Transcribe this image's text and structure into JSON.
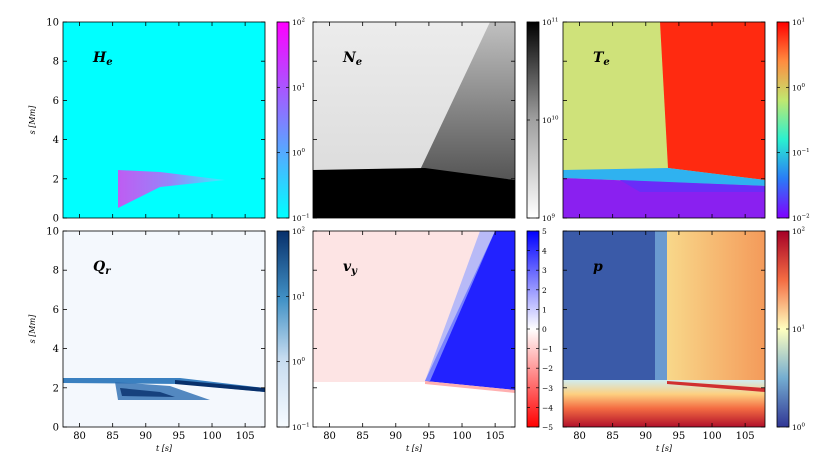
{
  "chart_data": {
    "type": "heatmap",
    "x": {
      "label": "t [s]",
      "range": [
        77.5,
        108
      ],
      "ticks": [
        "80",
        "85",
        "90",
        "95",
        "100",
        "105"
      ]
    },
    "y": {
      "label": "s [Mm]",
      "range": [
        0,
        10
      ],
      "ticks": [
        "0",
        "2",
        "4",
        "6",
        "8",
        "10"
      ]
    },
    "panels": [
      {
        "id": "He",
        "label": "H",
        "sub": "e",
        "colormap": "cool",
        "colorbar": {
          "scale": "log",
          "range": [
            0.1,
            100
          ],
          "ticks": [
            "10",
            "10",
            "10",
            "10"
          ],
          "exps": [
            "2",
            "1",
            "0",
            "−1"
          ]
        }
      },
      {
        "id": "Ne",
        "label": "N",
        "sub": "e",
        "colormap": "greys",
        "colorbar": {
          "scale": "log",
          "range": [
            1000000000.0,
            100000000000.0
          ],
          "ticks": [
            "10",
            "10",
            "10"
          ],
          "exps": [
            "11",
            "10",
            "9"
          ]
        }
      },
      {
        "id": "Te",
        "label": "T",
        "sub": "e",
        "colormap": "rainbow",
        "colorbar": {
          "scale": "log",
          "range": [
            0.01,
            20
          ],
          "ticks": [
            "10",
            "10",
            "10",
            "10"
          ],
          "exps": [
            "1",
            "0",
            "−1",
            "−2"
          ]
        }
      },
      {
        "id": "Qr",
        "label": "Q",
        "sub": "r",
        "colormap": "blues",
        "colorbar": {
          "scale": "log",
          "range": [
            0.1,
            100
          ],
          "ticks": [
            "10",
            "10",
            "10",
            "10"
          ],
          "exps": [
            "2",
            "1",
            "0",
            "−1"
          ]
        }
      },
      {
        "id": "vy",
        "label": "v",
        "sub": "y",
        "colormap": "bwr",
        "colorbar": {
          "scale": "linear",
          "range": [
            -5,
            5
          ],
          "ticks": [
            "5",
            "4",
            "3",
            "2",
            "1",
            "0",
            "−1",
            "−2",
            "−3",
            "−4",
            "−5"
          ]
        }
      },
      {
        "id": "p",
        "label": "p",
        "sub": "",
        "colormap": "ryb",
        "colorbar": {
          "scale": "log",
          "range": [
            1,
            100
          ],
          "ticks": [
            "10",
            "10",
            "10"
          ],
          "exps": [
            "2",
            "1",
            "0"
          ]
        }
      }
    ]
  }
}
